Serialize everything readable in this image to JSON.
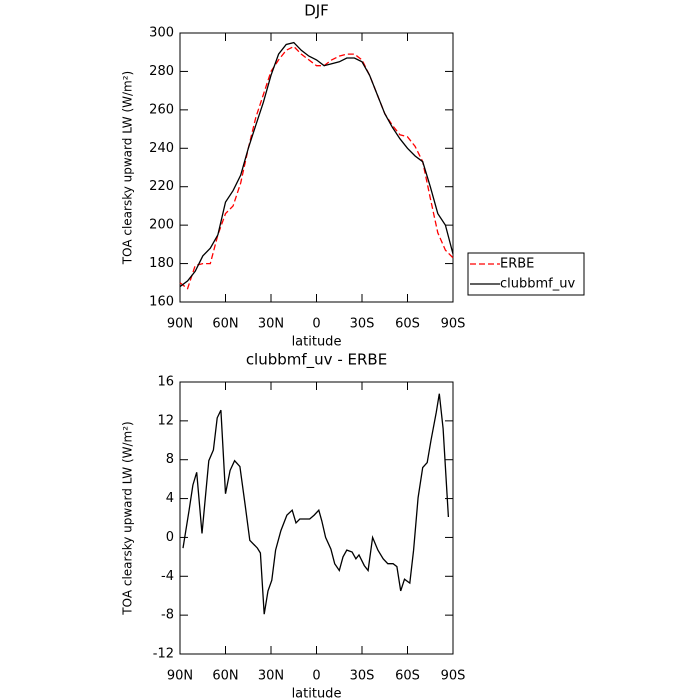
{
  "chart_data": [
    {
      "type": "line",
      "title": "DJF",
      "xlabel": "latitude",
      "ylabel": "TOA clearsky upward LW (W/m²)",
      "x": [
        90,
        85,
        80,
        75,
        70,
        65,
        60,
        55,
        50,
        45,
        40,
        35,
        30,
        25,
        20,
        15,
        10,
        5,
        0,
        -5,
        -10,
        -15,
        -20,
        -25,
        -30,
        -35,
        -40,
        -45,
        -50,
        -55,
        -60,
        -65,
        -70,
        -75,
        -80,
        -85,
        -90
      ],
      "series": [
        {
          "name": "ERBE",
          "color": "#ff0000",
          "linestyle": "dashed",
          "values": [
            170,
            167,
            179,
            180,
            180,
            195,
            206,
            210,
            222,
            240,
            256,
            268,
            280,
            286,
            291,
            293,
            289,
            286,
            283,
            283,
            286,
            288,
            289,
            289,
            286,
            278,
            268,
            258,
            252,
            247,
            246,
            241,
            233,
            214,
            196,
            187,
            183
          ]
        },
        {
          "name": "clubbmf_uv",
          "color": "#000000",
          "linestyle": "solid",
          "values": [
            168,
            171,
            176,
            184,
            188,
            195,
            212,
            218,
            226,
            240,
            252,
            264,
            278,
            289,
            294,
            295,
            291,
            288,
            286,
            283,
            284,
            285,
            287,
            287,
            285,
            278,
            268,
            258,
            251,
            245,
            240,
            236,
            233,
            220,
            206,
            200,
            185
          ]
        }
      ],
      "xlim": [
        90,
        -90
      ],
      "xticks": [
        {
          "value": 90,
          "label": "90N"
        },
        {
          "value": 60,
          "label": "60N"
        },
        {
          "value": 30,
          "label": "30N"
        },
        0,
        {
          "value": -30,
          "label": "30S"
        },
        {
          "value": -60,
          "label": "60S"
        },
        {
          "value": -90,
          "label": "90S"
        }
      ],
      "ylim": [
        160,
        300
      ],
      "yticks": [
        160,
        180,
        200,
        220,
        240,
        260,
        280,
        300
      ],
      "legend": "right"
    },
    {
      "type": "line",
      "title": "clubbmf_uv - ERBE",
      "xlabel": "latitude",
      "ylabel": "TOA clearsky upward LW (W/m²)",
      "color": "#000000",
      "x": [
        88,
        84,
        81.5,
        79,
        75.5,
        71,
        68,
        65.5,
        63,
        60,
        57,
        54,
        50.5,
        47,
        44,
        39,
        37,
        34.5,
        32,
        29.5,
        27,
        23.5,
        19.5,
        16,
        13.5,
        11,
        7.5,
        4.5,
        1.5,
        -1.5,
        -3.5,
        -6,
        -9.5,
        -12,
        -15,
        -17.5,
        -20,
        -23.5,
        -26,
        -28,
        -31.5,
        -34,
        -37,
        -40.5,
        -44,
        -47,
        -50.5,
        -53,
        -55.5,
        -58,
        -61.5,
        -64,
        -67,
        -70,
        -73,
        -75.5,
        -79,
        -81,
        -83.5,
        -87
      ],
      "values": [
        -1.1,
        2.8,
        5.4,
        6.7,
        0.4,
        7.9,
        9,
        12.3,
        13.1,
        4.5,
        6.9,
        7.9,
        7.3,
        3.3,
        -0.3,
        -1.1,
        -1.6,
        -7.9,
        -5.5,
        -4.4,
        -1.3,
        0.7,
        2.3,
        2.8,
        1.5,
        1.9,
        1.9,
        1.9,
        2.3,
        2.8,
        1.7,
        0,
        -1.2,
        -2.7,
        -3.4,
        -2,
        -1.3,
        -1.5,
        -2.2,
        -1.8,
        -2.9,
        -3.4,
        0,
        -1.3,
        -2.2,
        -2.7,
        -2.7,
        -3,
        -5.5,
        -4.3,
        -4.7,
        -1.3,
        4.1,
        7.2,
        7.7,
        10,
        12.9,
        14.8,
        11.2,
        2.1
      ],
      "xlim": [
        90,
        -90
      ],
      "xticks": [
        {
          "value": 90,
          "label": "90N"
        },
        {
          "value": 60,
          "label": "60N"
        },
        {
          "value": 30,
          "label": "30N"
        },
        0,
        {
          "value": -30,
          "label": "30S"
        },
        {
          "value": -60,
          "label": "60S"
        },
        {
          "value": -90,
          "label": "90S"
        }
      ],
      "ylim": [
        -12,
        16
      ],
      "yticks": [
        -12,
        -8,
        -4,
        0,
        4,
        8,
        12,
        16
      ]
    }
  ]
}
